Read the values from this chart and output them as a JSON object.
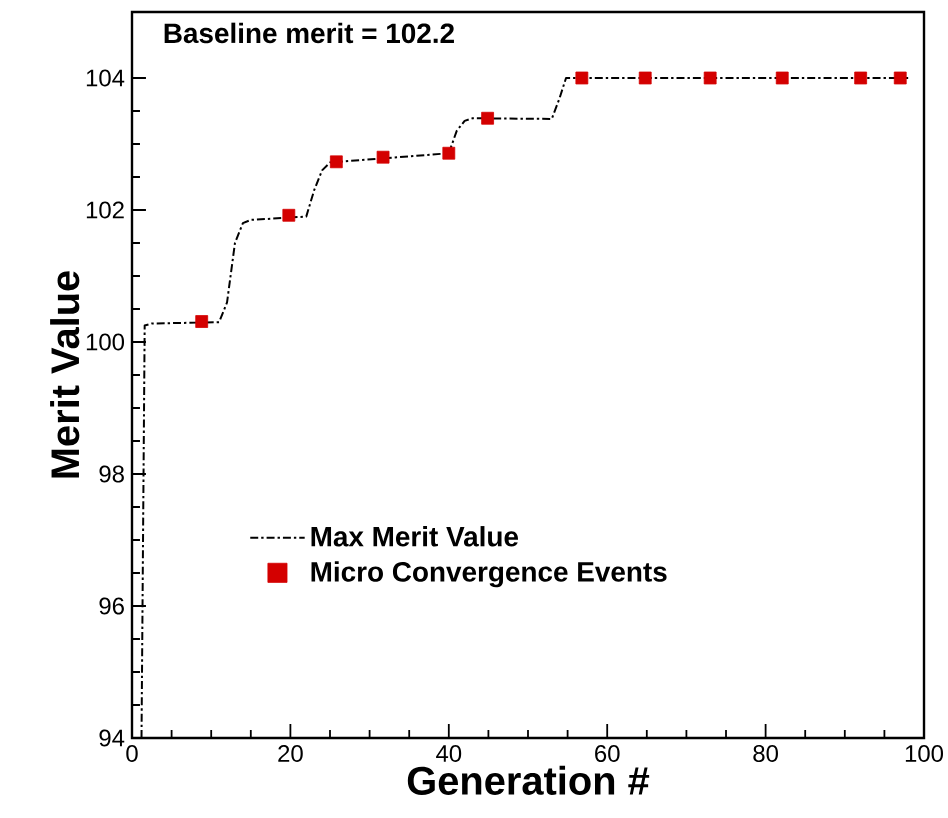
{
  "chart_data": {
    "type": "line",
    "xlabel": "Generation #",
    "ylabel": "Merit Value",
    "annotations": [
      "Baseline merit = 102.2"
    ],
    "xlim": [
      0,
      100
    ],
    "ylim": [
      94,
      105
    ],
    "xticks": [
      0,
      20,
      40,
      60,
      80,
      100
    ],
    "yticks": [
      94,
      96,
      98,
      100,
      102,
      104
    ],
    "legend": "center",
    "grid": false,
    "series": [
      {
        "name": "Max Merit Value",
        "type": "line",
        "line_style": "dashdot",
        "marker": "none",
        "color": "#000000",
        "x": [
          1.2,
          1.6,
          2.5,
          11,
          12,
          13,
          14,
          15,
          22,
          23,
          24,
          25,
          40,
          41,
          42,
          43,
          53,
          54,
          54.8,
          98
        ],
        "values": [
          94,
          100.25,
          100.28,
          100.3,
          100.6,
          101.5,
          101.8,
          101.85,
          101.9,
          102.3,
          102.6,
          102.72,
          102.86,
          103.2,
          103.35,
          103.39,
          103.38,
          103.7,
          104,
          104
        ]
      },
      {
        "name": "Micro Convergence Events",
        "type": "scatter",
        "marker": "square",
        "color": "#d40000",
        "x": [
          8.8,
          19.8,
          25.8,
          31.7,
          40.0,
          44.9,
          56.8,
          64.8,
          73.0,
          82.1,
          92.0,
          97.0
        ],
        "values": [
          100.31,
          101.92,
          102.73,
          102.8,
          102.86,
          103.39,
          104,
          104,
          104,
          104,
          104,
          104
        ]
      }
    ]
  }
}
